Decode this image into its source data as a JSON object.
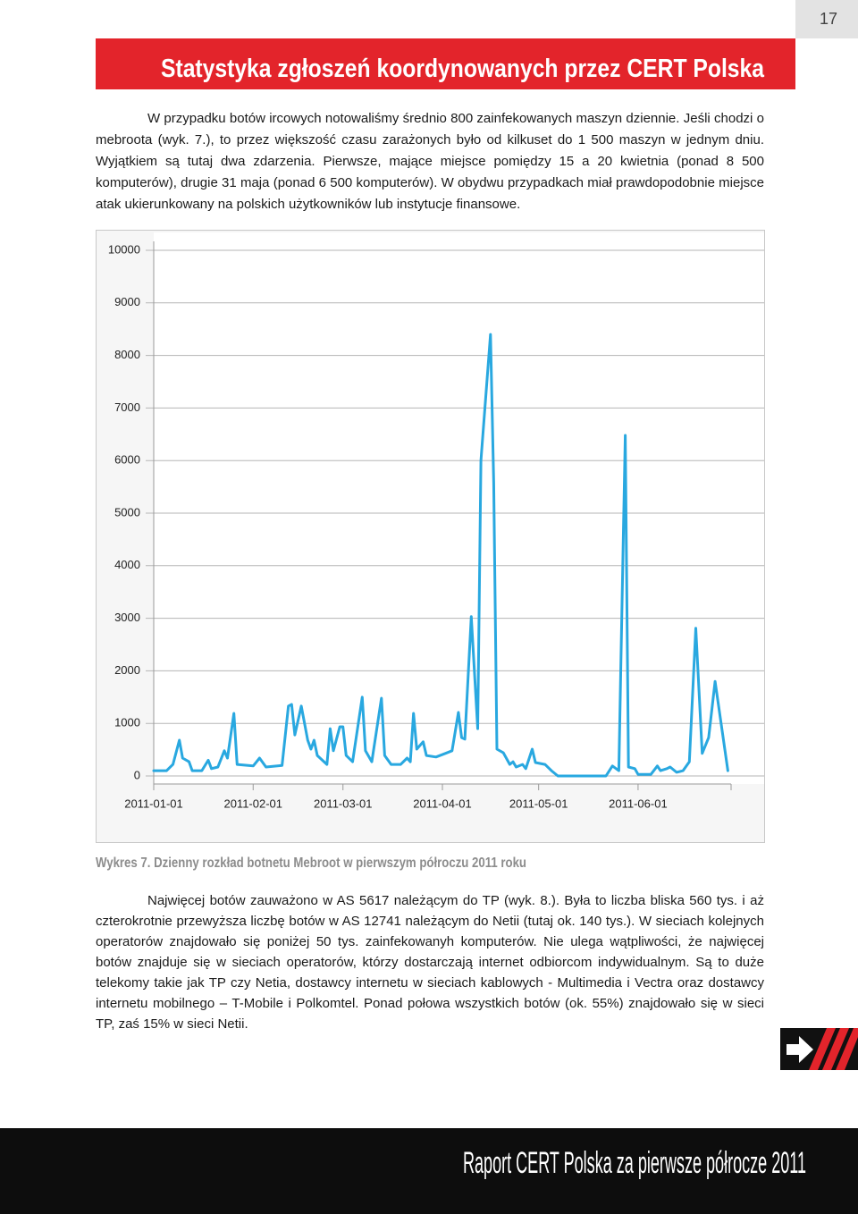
{
  "header": {
    "page_number": "17",
    "title": "Statystyka zgłoszeń koordynowanych przez CERT Polska"
  },
  "paragraphs": [
    "W przypadku botów ircowych notowaliśmy średnio 800 zainfekowanych maszyn dziennie. Jeśli chodzi o mebroota (wyk. 7.), to przez większość czasu zarażonych było od kilkuset do 1 500 maszyn w jednym dniu. Wyjątkiem są tutaj dwa zdarzenia. Pierwsze, mające miejsce pomiędzy 15 a 20 kwietnia (ponad 8 500 komputerów), drugie 31 maja (ponad 6 500 komputerów). W obydwu przypadkach miał prawdopodobnie miejsce atak ukierunkowany na polskich użytkowników lub instytucje finansowe.",
    "Najwięcej botów zauważono w AS 5617 należącym do TP (wyk. 8.). Była to liczba bliska 560 tys. i aż czterokrotnie przewyższa liczbę botów w AS 12741 należącym do Netii (tutaj ok. 140 tys.). W sieciach kolejnych operatorów znajdowało się poniżej 50 tys. zainfekowanyh komputerów. Nie ulega wątpliwości, że najwięcej botów znajduje się w sieciach operatorów, którzy dostarczają internet odbiorcom indywidualnym. Są to duże telekomy takie jak TP czy Netia, dostawcy internetu w sieciach kablowych - Multimedia i Vectra oraz dostawcy internetu mobilnego – T-Mobile i Polkomtel. Ponad połowa wszystkich botów (ok. 55%) znajdowało się w sieci TP, zaś 15% w sieci Netii."
  ],
  "chart_data": {
    "type": "line",
    "caption": "Wykres 7. Dzienny rozkład botnetu Mebroot w pierwszym półroczu 2011 roku",
    "color": "#29a8e0",
    "x": [
      "2011-01-01",
      "2011-01-05",
      "2011-01-07",
      "2011-01-09",
      "2011-01-10",
      "2011-01-12",
      "2011-01-13",
      "2011-01-16",
      "2011-01-18",
      "2011-01-19",
      "2011-01-21",
      "2011-01-23",
      "2011-01-24",
      "2011-01-26",
      "2011-01-27",
      "2011-02-01",
      "2011-02-03",
      "2011-02-05",
      "2011-02-10",
      "2011-02-12",
      "2011-02-13",
      "2011-02-14",
      "2011-02-16",
      "2011-02-18",
      "2011-02-19",
      "2011-02-20",
      "2011-02-21",
      "2011-02-24",
      "2011-02-25",
      "2011-02-26",
      "2011-02-28",
      "2011-03-01",
      "2011-03-02",
      "2011-03-04",
      "2011-03-07",
      "2011-03-08",
      "2011-03-10",
      "2011-03-13",
      "2011-03-14",
      "2011-03-16",
      "2011-03-19",
      "2011-03-21",
      "2011-03-22",
      "2011-03-23",
      "2011-03-24",
      "2011-03-26",
      "2011-03-27",
      "2011-03-30",
      "2011-04-02",
      "2011-04-04",
      "2011-04-06",
      "2011-04-07",
      "2011-04-08",
      "2011-04-10",
      "2011-04-12",
      "2011-04-13",
      "2011-04-16",
      "2011-04-17",
      "2011-04-18",
      "2011-04-20",
      "2011-04-22",
      "2011-04-23",
      "2011-04-24",
      "2011-04-26",
      "2011-04-27",
      "2011-04-29",
      "2011-04-30",
      "2011-05-03",
      "2011-05-05",
      "2011-05-07",
      "2011-05-22",
      "2011-05-24",
      "2011-05-26",
      "2011-05-28",
      "2011-05-29",
      "2011-05-31",
      "2011-06-01",
      "2011-06-05",
      "2011-06-07",
      "2011-06-08",
      "2011-06-10",
      "2011-06-11",
      "2011-06-13",
      "2011-06-15",
      "2011-06-17",
      "2011-06-19",
      "2011-06-21",
      "2011-06-23",
      "2011-06-25",
      "2011-06-29"
    ],
    "values": [
      100,
      100,
      220,
      680,
      340,
      270,
      100,
      100,
      300,
      140,
      170,
      480,
      340,
      1190,
      220,
      190,
      340,
      170,
      200,
      1330,
      1360,
      780,
      1330,
      680,
      510,
      680,
      390,
      220,
      900,
      480,
      935,
      935,
      390,
      270,
      1500,
      480,
      270,
      1480,
      390,
      220,
      220,
      340,
      270,
      1190,
      510,
      650,
      390,
      360,
      430,
      480,
      1210,
      730,
      700,
      3030,
      900,
      6000,
      8400,
      5580,
      510,
      440,
      220,
      270,
      170,
      220,
      140,
      510,
      255,
      220,
      100,
      0,
      0,
      190,
      100,
      6480,
      170,
      140,
      30,
      30,
      190,
      100,
      140,
      170,
      70,
      100,
      270,
      2810,
      430,
      730,
      1800,
      100
    ],
    "xlim": [
      "2011-01-01",
      "2011-06-30"
    ],
    "xticks": [
      "2011-01-01",
      "2011-02-01",
      "2011-03-01",
      "2011-04-01",
      "2011-05-01",
      "2011-06-01"
    ],
    "ylim": [
      0,
      10000
    ],
    "yticks": [
      0,
      1000,
      2000,
      3000,
      4000,
      5000,
      6000,
      7000,
      8000,
      9000,
      10000
    ],
    "grid": true
  },
  "footer": {
    "title": "Raport CERT Polska za pierwsze półrocze 2011"
  }
}
